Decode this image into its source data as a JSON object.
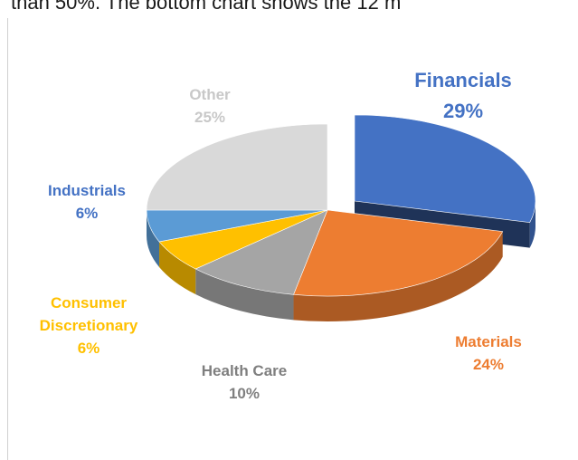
{
  "caption": "than 50%. The bottom chart shows the 12 m",
  "chart_data": {
    "type": "pie",
    "categories": [
      "Financials",
      "Materials",
      "Health Care",
      "Consumer Discretionary",
      "Industrials",
      "Other"
    ],
    "values": [
      29,
      24,
      10,
      6,
      6,
      25
    ],
    "value_labels": [
      "29%",
      "24%",
      "10%",
      "6%",
      "6%",
      "25%"
    ],
    "colors": [
      "#4472c4",
      "#ed7d31",
      "#a5a5a5",
      "#ffc000",
      "#5b9bd5",
      "#d9d9d9"
    ],
    "label_colors": [
      "#4472c4",
      "#ed7d31",
      "#7f7f7f",
      "#ffc000",
      "#4472c4",
      "#c8c8c8"
    ]
  }
}
